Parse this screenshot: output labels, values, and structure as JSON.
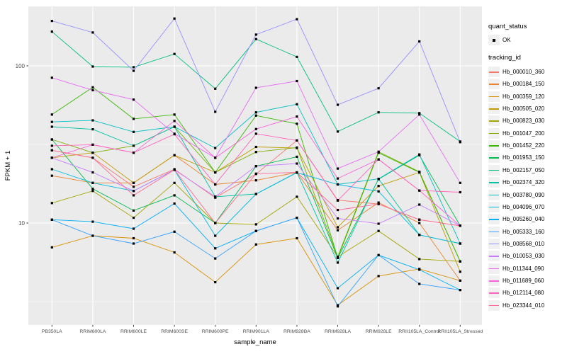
{
  "axes": {
    "x_title": "sample_name",
    "y_title": "FPKM + 1",
    "y_tick_labels": [
      "100",
      "10"
    ]
  },
  "legend": {
    "quant_status_title": "quant_status",
    "quant_status_value": "OK",
    "tracking_title": "tracking_id"
  },
  "colors": {
    "panel_bg": "#EBEBEB",
    "grid": "#FFFFFF",
    "tick_text": "#4D4D4D",
    "axis_text": "#000000",
    "marker": "#000000",
    "legend_key_bg": "#F0F0F0"
  },
  "chart_data": {
    "type": "line",
    "x_scale": "categorical",
    "y_scale": "log10",
    "ylabel": "FPKM + 1",
    "xlabel": "sample_name",
    "y_ticks": [
      100,
      10
    ],
    "y_minor": [
      31.62,
      3.162
    ],
    "ylim": [
      2.5,
      240
    ],
    "grid": "white-on-grey",
    "legend_position": "right",
    "point_marker": "small-black-square",
    "quant_status": "OK",
    "categories": [
      "PB350LA",
      "RRIM600LA",
      "RRIM600LE",
      "RRIM600SE",
      "RRIM600PE",
      "RRIM901LA",
      "RRIM928BA",
      "RRIM928LA",
      "RRIM928LE",
      "RRII105LA_Control",
      "RRII105LA_Stressed"
    ],
    "series": [
      {
        "name": "Hb_000010_360",
        "color": "#F8766D",
        "values": [
          29,
          26,
          17,
          22,
          14.5,
          20.5,
          33.5,
          14,
          13.2,
          10.5,
          9.6
        ]
      },
      {
        "name": "Hb_000184_150",
        "color": "#EA8331",
        "values": [
          20,
          18,
          18,
          27,
          17.6,
          18.7,
          21,
          9,
          13.5,
          10,
          4.3
        ]
      },
      {
        "name": "Hb_000359_120",
        "color": "#D89000",
        "values": [
          7,
          8.3,
          8,
          6.5,
          4.2,
          7.3,
          8,
          3,
          4.6,
          5.1,
          4.3
        ]
      },
      {
        "name": "Hb_000505_020",
        "color": "#C09B00",
        "values": [
          26,
          28,
          18,
          27,
          21,
          30.5,
          30,
          9.4,
          17.2,
          21,
          4.9
        ]
      },
      {
        "name": "Hb_000823_030",
        "color": "#A3A500",
        "values": [
          13.4,
          16,
          10.8,
          18,
          10,
          9.8,
          14.7,
          6.1,
          8.9,
          5.9,
          5.7
        ]
      },
      {
        "name": "Hb_001047_200",
        "color": "#7CAE00",
        "values": [
          34,
          28,
          31,
          41,
          21,
          28.3,
          30.2,
          6.1,
          28.4,
          21.2,
          5.7
        ]
      },
      {
        "name": "Hb_001452_220",
        "color": "#39B600",
        "values": [
          49,
          73,
          46,
          49,
          21,
          48.3,
          42.8,
          6,
          28,
          21,
          5.7
        ]
      },
      {
        "name": "Hb_001953_150",
        "color": "#00BB4E",
        "values": [
          34,
          16.5,
          12,
          15,
          10,
          23,
          26.4,
          6,
          19,
          27,
          9.6
        ]
      },
      {
        "name": "Hb_002157_050",
        "color": "#00BF7D",
        "values": [
          165,
          99,
          98,
          119,
          71.5,
          148,
          114,
          38.2,
          50.6,
          50,
          33
        ]
      },
      {
        "name": "Hb_002374_320",
        "color": "#00C1A3",
        "values": [
          41,
          39.5,
          31,
          41,
          14.7,
          15.3,
          21,
          5.6,
          19.1,
          8.4,
          7.4
        ]
      },
      {
        "name": "Hb_003780_090",
        "color": "#00BFC4",
        "values": [
          44,
          45,
          38,
          41,
          30,
          50.6,
          57,
          17.6,
          19.1,
          27.3,
          7.4
        ]
      },
      {
        "name": "Hb_004096_070",
        "color": "#00BAE0",
        "values": [
          22,
          18,
          16,
          21.8,
          8.3,
          15.3,
          20.9,
          17.6,
          15.9,
          8.4,
          7.4
        ]
      },
      {
        "name": "Hb_005260_040",
        "color": "#00B0F6",
        "values": [
          10.5,
          10.2,
          9.2,
          13.3,
          6.9,
          8.9,
          10.8,
          3.85,
          6.25,
          5.05,
          3.75
        ]
      },
      {
        "name": "Hb_005333_160",
        "color": "#35A2FF",
        "values": [
          10.5,
          8.3,
          7.4,
          8.8,
          5.95,
          8.9,
          10.8,
          2.95,
          6.25,
          4.1,
          3.75
        ]
      },
      {
        "name": "Hb_008568_010",
        "color": "#9590FF",
        "values": [
          193,
          163,
          93,
          200,
          51,
          158,
          198,
          56.5,
          72,
          143,
          32.7
        ]
      },
      {
        "name": "Hb_010053_030",
        "color": "#C77CFF",
        "values": [
          26,
          21,
          16,
          21.8,
          14.7,
          23,
          23.9,
          10.7,
          9.9,
          13.1,
          9.6
        ]
      },
      {
        "name": "Hb_011344_090",
        "color": "#E76BF3",
        "values": [
          84,
          70,
          61,
          37,
          26,
          72.5,
          80,
          22.2,
          28.4,
          49,
          18
        ]
      },
      {
        "name": "Hb_011689_060",
        "color": "#FA62DB",
        "values": [
          26,
          31.5,
          28,
          44.6,
          26,
          39.6,
          47.6,
          19.2,
          25.4,
          16.1,
          9.6
        ]
      },
      {
        "name": "Hb_012114_080",
        "color": "#FF62BC",
        "values": [
          31,
          31.5,
          28,
          36.7,
          17.6,
          37,
          33.5,
          13.9,
          25.4,
          16.1,
          15.7
        ]
      },
      {
        "name": "Hb_023344_010",
        "color": "#FF6A98",
        "values": [
          29,
          26,
          15,
          21.8,
          10,
          20.6,
          21,
          12.1,
          13.2,
          10.5,
          9.6
        ]
      }
    ]
  }
}
